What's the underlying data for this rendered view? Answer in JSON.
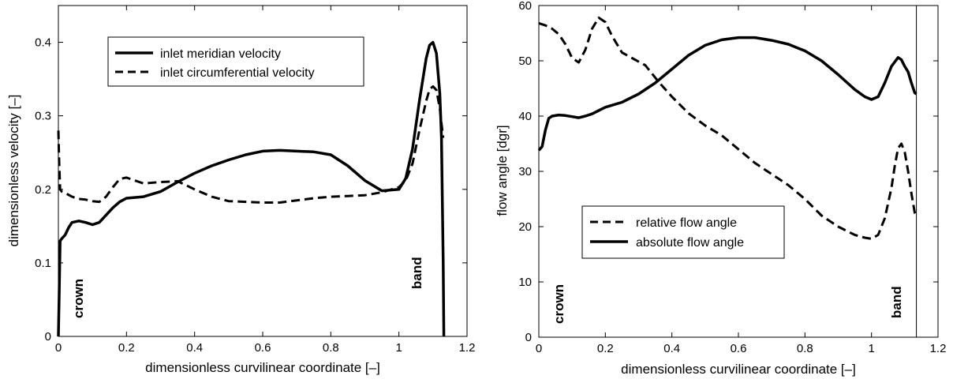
{
  "chart_data": [
    {
      "type": "line",
      "xlabel": "dimensionless curvilinear coordinate [–]",
      "ylabel": "dimensionless velocity [–]",
      "xlim": [
        0,
        1.2
      ],
      "ylim": [
        0,
        0.45
      ],
      "xticks": [
        0,
        0.2,
        0.4,
        0.6,
        0.8,
        1,
        1.2
      ],
      "xtick_labels": [
        "0",
        "0.2",
        "0.4",
        "0.6",
        "0.8",
        "1",
        "1.2"
      ],
      "yticks": [
        0,
        0.1,
        0.2,
        0.3,
        0.4
      ],
      "ytick_labels": [
        "0",
        "0.1",
        "0.2",
        "0.3",
        "0.4"
      ],
      "grid": false,
      "legend_position": "top-left",
      "annotations": [
        {
          "text": "crown",
          "x": 0.05,
          "y": 0.05,
          "rotation": -90
        },
        {
          "text": "band",
          "x": 1.08,
          "y": 0.1,
          "rotation": -90
        }
      ],
      "series": [
        {
          "name": "inlet meridian velocity",
          "style": "solid",
          "x": [
            0,
            0.002,
            0.005,
            0.01,
            0.02,
            0.03,
            0.04,
            0.06,
            0.08,
            0.1,
            0.12,
            0.14,
            0.16,
            0.18,
            0.2,
            0.25,
            0.3,
            0.35,
            0.4,
            0.45,
            0.5,
            0.55,
            0.6,
            0.65,
            0.7,
            0.75,
            0.8,
            0.85,
            0.9,
            0.95,
            1.0,
            1.02,
            1.04,
            1.06,
            1.08,
            1.09,
            1.1,
            1.11,
            1.12,
            1.125,
            1.13,
            1.132
          ],
          "y": [
            0.0,
            0.05,
            0.13,
            0.133,
            0.138,
            0.148,
            0.155,
            0.157,
            0.155,
            0.152,
            0.155,
            0.165,
            0.175,
            0.183,
            0.188,
            0.19,
            0.197,
            0.21,
            0.222,
            0.232,
            0.24,
            0.247,
            0.252,
            0.253,
            0.252,
            0.251,
            0.247,
            0.232,
            0.212,
            0.198,
            0.2,
            0.215,
            0.255,
            0.32,
            0.378,
            0.396,
            0.4,
            0.385,
            0.33,
            0.27,
            0.1,
            0.0
          ]
        },
        {
          "name": "inlet circumferential velocity",
          "style": "dashed",
          "x": [
            0,
            0.002,
            0.005,
            0.01,
            0.02,
            0.04,
            0.06,
            0.08,
            0.1,
            0.12,
            0.14,
            0.16,
            0.18,
            0.2,
            0.25,
            0.3,
            0.35,
            0.4,
            0.45,
            0.5,
            0.55,
            0.6,
            0.65,
            0.7,
            0.75,
            0.8,
            0.85,
            0.9,
            0.95,
            1.0,
            1.02,
            1.04,
            1.06,
            1.08,
            1.09,
            1.1,
            1.11,
            1.12,
            1.125,
            1.13
          ],
          "y": [
            0.28,
            0.24,
            0.2,
            0.197,
            0.195,
            0.19,
            0.187,
            0.186,
            0.184,
            0.183,
            0.19,
            0.203,
            0.214,
            0.216,
            0.208,
            0.21,
            0.211,
            0.2,
            0.19,
            0.184,
            0.183,
            0.182,
            0.182,
            0.185,
            0.188,
            0.19,
            0.191,
            0.192,
            0.196,
            0.203,
            0.212,
            0.235,
            0.28,
            0.32,
            0.336,
            0.34,
            0.335,
            0.31,
            0.29,
            0.27
          ]
        }
      ]
    },
    {
      "type": "line",
      "xlabel": "dimensionless curvilinear coordinate [–]",
      "ylabel": "flow angle [dgr]",
      "xlim": [
        0,
        1.2
      ],
      "ylim": [
        0,
        60
      ],
      "xticks": [
        0,
        0.2,
        0.4,
        0.6,
        0.8,
        1,
        1.2
      ],
      "xtick_labels": [
        "0",
        "0.2",
        "0.4",
        "0.6",
        "0.8",
        "1",
        "1.2"
      ],
      "yticks": [
        0,
        10,
        20,
        30,
        40,
        50,
        60
      ],
      "ytick_labels": [
        "0",
        "10",
        "20",
        "30",
        "40",
        "50",
        "60"
      ],
      "grid": false,
      "legend_position": "bottom-center",
      "vertical_line_x": 1.135,
      "annotations": [
        {
          "text": "crown",
          "x": 0.05,
          "y": 6,
          "rotation": -90
        },
        {
          "text": "band",
          "x": 1.08,
          "y": 1,
          "rotation": -90
        }
      ],
      "series": [
        {
          "name": "relative flow angle",
          "style": "dashed",
          "x": [
            0,
            0.02,
            0.04,
            0.06,
            0.08,
            0.1,
            0.12,
            0.14,
            0.16,
            0.18,
            0.2,
            0.22,
            0.25,
            0.28,
            0.32,
            0.36,
            0.4,
            0.45,
            0.5,
            0.55,
            0.6,
            0.65,
            0.7,
            0.75,
            0.8,
            0.85,
            0.9,
            0.95,
            0.98,
            1.0,
            1.02,
            1.04,
            1.06,
            1.07,
            1.08,
            1.09,
            1.1,
            1.11,
            1.12,
            1.13,
            1.135
          ],
          "y": [
            56.8,
            56.4,
            55.8,
            54.8,
            53.0,
            50.5,
            49.7,
            52.0,
            55.8,
            57.8,
            57.0,
            54.5,
            51.5,
            50.5,
            49.2,
            46.2,
            43.5,
            40.5,
            38.3,
            36.5,
            34.0,
            31.5,
            29.5,
            27.5,
            25.0,
            22.0,
            20.0,
            18.5,
            18.0,
            17.8,
            18.5,
            21.5,
            27.0,
            31.0,
            34.2,
            35.0,
            33.5,
            30.0,
            26.0,
            22.5,
            21.8
          ]
        },
        {
          "name": "absolute flow angle",
          "style": "solid",
          "x": [
            0,
            0.01,
            0.02,
            0.03,
            0.04,
            0.06,
            0.08,
            0.1,
            0.12,
            0.14,
            0.16,
            0.18,
            0.2,
            0.25,
            0.3,
            0.35,
            0.4,
            0.45,
            0.5,
            0.55,
            0.6,
            0.65,
            0.7,
            0.75,
            0.8,
            0.85,
            0.9,
            0.95,
            0.98,
            1.0,
            1.02,
            1.04,
            1.06,
            1.08,
            1.09,
            1.1,
            1.11,
            1.12,
            1.13,
            1.135
          ],
          "y": [
            33.8,
            34.5,
            37.5,
            39.6,
            40.0,
            40.2,
            40.1,
            39.9,
            39.7,
            40.0,
            40.4,
            41.0,
            41.6,
            42.5,
            44.0,
            46.0,
            48.5,
            51.0,
            52.8,
            53.8,
            54.2,
            54.2,
            53.7,
            53.0,
            51.8,
            50.0,
            47.5,
            44.8,
            43.5,
            43.0,
            43.5,
            46.0,
            49.0,
            50.6,
            50.2,
            49.0,
            48.0,
            46.0,
            44.2,
            44.0
          ]
        }
      ]
    }
  ]
}
